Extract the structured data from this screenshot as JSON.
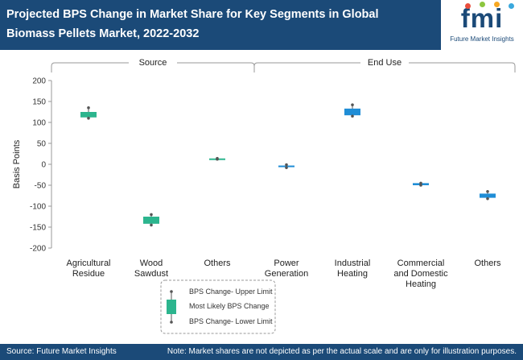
{
  "header": {
    "title": "Projected BPS Change in Market Share for Key Segments in Global Biomass Pellets Market, 2022-2032",
    "logo_mark": "fmi",
    "logo_text": "Future Market Insights",
    "logo_dot_colors": [
      "#e94e3c",
      "#8cc63f",
      "#f7a823",
      "#3aa8dd"
    ]
  },
  "chart_data": {
    "type": "boxplot",
    "ylabel": "Basis Points",
    "ylim": [
      -200,
      200
    ],
    "yticks": [
      200,
      150,
      100,
      50,
      0,
      -50,
      -100,
      -150,
      -200
    ],
    "groups": [
      {
        "label": "Source",
        "categories": [
          "Agricultural Residue",
          "Wood Sawdust",
          "Others"
        ]
      },
      {
        "label": "End Use",
        "categories": [
          "Power Generation",
          "Industrial Heating",
          "Commercial and Domestic Heating",
          "Others"
        ]
      }
    ],
    "series": [
      {
        "category": "Agricultural Residue",
        "category_lines": [
          "Agricultural",
          "Residue"
        ],
        "lower": 110,
        "box_low": 112,
        "box_high": 125,
        "upper": 135,
        "color": "#2cb58e"
      },
      {
        "category": "Wood Sawdust",
        "category_lines": [
          "Wood",
          "Sawdust"
        ],
        "lower": -145,
        "box_low": -142,
        "box_high": -125,
        "upper": -120,
        "color": "#2cb58e"
      },
      {
        "category": "Others",
        "category_lines": [
          "Others"
        ],
        "lower": 12,
        "box_low": 12,
        "box_high": 14,
        "upper": 14,
        "color": "#2cb58e"
      },
      {
        "category": "Power Generation",
        "category_lines": [
          "Power",
          "Generation"
        ],
        "lower": -8,
        "box_low": -5,
        "box_high": -3,
        "upper": -1,
        "color": "#1f8dd6"
      },
      {
        "category": "Industrial Heating",
        "category_lines": [
          "Industrial",
          "Heating"
        ],
        "lower": 115,
        "box_low": 117,
        "box_high": 133,
        "upper": 142,
        "color": "#1f8dd6"
      },
      {
        "category": "Commercial and Domestic Heating",
        "category_lines": [
          "Commercial",
          "and Domestic",
          "Heating"
        ],
        "lower": -50,
        "box_low": -50,
        "box_high": -45,
        "upper": -45,
        "color": "#1f8dd6"
      },
      {
        "category": "Others",
        "category_lines": [
          "Others"
        ],
        "lower": -82,
        "box_low": -80,
        "box_high": -70,
        "upper": -65,
        "color": "#1f8dd6"
      }
    ],
    "legend": {
      "entries": [
        "BPS Change- Upper Limit",
        "Most Likely BPS Change",
        "BPS Change- Lower Limit"
      ],
      "color": "#2cb58e"
    }
  },
  "footer": {
    "source": "Source: Future Market Insights",
    "note": "Note: Market shares are not depicted as per the actual scale and are only for illustration purposes."
  }
}
